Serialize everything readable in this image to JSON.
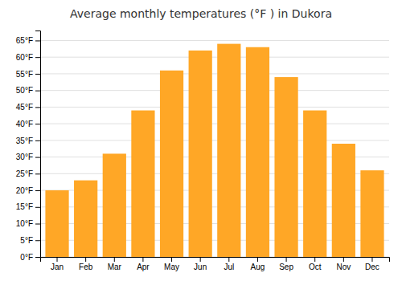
{
  "chart_data": {
    "type": "bar",
    "title": "Average monthly temperatures (°F ) in Dukora",
    "categories": [
      "Jan",
      "Feb",
      "Mar",
      "Apr",
      "May",
      "Jun",
      "Jul",
      "Aug",
      "Sep",
      "Oct",
      "Nov",
      "Dec"
    ],
    "values": [
      20,
      23,
      31,
      44,
      56,
      62,
      64,
      63,
      54,
      44,
      34,
      26
    ],
    "color": "#FFA726",
    "ylim": [
      0,
      68
    ],
    "yticks": [
      {
        "value": 0,
        "label": "0°F"
      },
      {
        "value": 5,
        "label": "5°F"
      },
      {
        "value": 10,
        "label": "10°F"
      },
      {
        "value": 15,
        "label": "15°F"
      },
      {
        "value": 20,
        "label": "20°F"
      },
      {
        "value": 25,
        "label": "25°F"
      },
      {
        "value": 30,
        "label": "30°F"
      },
      {
        "value": 35,
        "label": "35°F"
      },
      {
        "value": 40,
        "label": "40°F"
      },
      {
        "value": 45,
        "label": "45°F"
      },
      {
        "value": 50,
        "label": "50°F"
      },
      {
        "value": 55,
        "label": "55°F"
      },
      {
        "value": 60,
        "label": "60°F"
      },
      {
        "value": 65,
        "label": "65°F"
      }
    ],
    "grid": true
  }
}
